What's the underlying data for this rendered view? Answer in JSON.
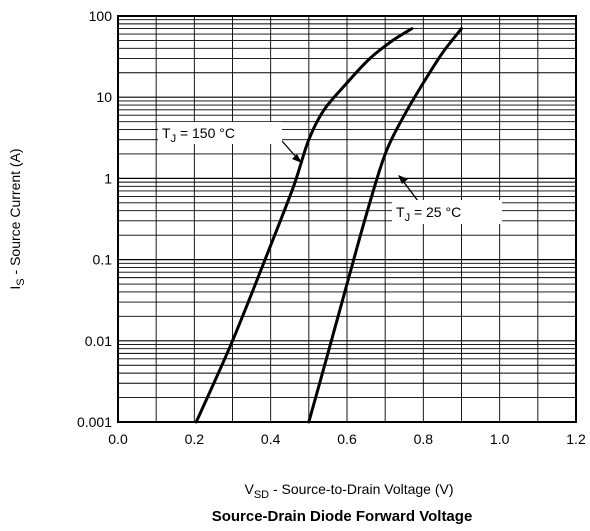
{
  "chart_data": {
    "type": "line",
    "title": "Source-Drain Diode Forward Voltage",
    "xlabel": {
      "main": "V",
      "sub": "SD",
      "rest": " - Source-to-Drain Voltage (V)"
    },
    "ylabel": {
      "main": "I",
      "sub": "S",
      "rest": " - Source Current (A)"
    },
    "xlim": [
      0.0,
      1.2
    ],
    "ylim": [
      0.001,
      100
    ],
    "yscale": "log",
    "grid": true,
    "x_ticks": [
      "0.0",
      "0.2",
      "0.4",
      "0.6",
      "0.8",
      "1.0",
      "1.2"
    ],
    "y_ticks": [
      "0.001",
      "0.01",
      "0.1",
      "1",
      "10",
      "100"
    ],
    "series": [
      {
        "name": "T_J = 150 °C",
        "label": {
          "main": "T",
          "sub": "J",
          "rest": " = 150 °C"
        },
        "x": [
          0.205,
          0.3,
          0.4,
          0.46,
          0.5,
          0.54,
          0.6,
          0.66,
          0.72,
          0.77
        ],
        "y": [
          0.001,
          0.01,
          0.15,
          0.8,
          3,
          7,
          15,
          30,
          50,
          70
        ]
      },
      {
        "name": "T_J = 25 °C",
        "label": {
          "main": "T",
          "sub": "J",
          "rest": " = 25 °C"
        },
        "x": [
          0.5,
          0.55,
          0.6,
          0.65,
          0.7,
          0.75,
          0.8,
          0.85,
          0.9
        ],
        "y": [
          0.001,
          0.007,
          0.05,
          0.35,
          2,
          6,
          15,
          35,
          70
        ]
      }
    ]
  }
}
